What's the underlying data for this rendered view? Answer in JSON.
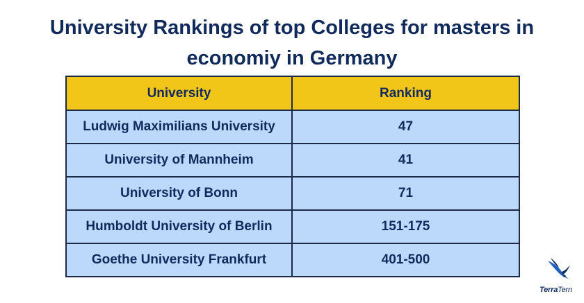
{
  "title": "University Rankings of top Colleges for masters in economiy in Germany",
  "table": {
    "headers": [
      "University",
      "Ranking"
    ],
    "rows": [
      {
        "university": "Ludwig Maximilians University",
        "ranking": "47"
      },
      {
        "university": "University of Mannheim",
        "ranking": "41"
      },
      {
        "university": "University of Bonn",
        "ranking": "71"
      },
      {
        "university": "Humboldt University of Berlin",
        "ranking": "151-175"
      },
      {
        "university": "Goethe University Frankfurt",
        "ranking": "401-500"
      }
    ]
  },
  "logo": {
    "part1": "Terra",
    "part2": "Tern",
    "icon": "tern-bird-icon"
  },
  "colors": {
    "title": "#102a5c",
    "header_bg": "#f2c619",
    "cell_bg": "#bcd8fb",
    "border": "#1b2a47"
  }
}
